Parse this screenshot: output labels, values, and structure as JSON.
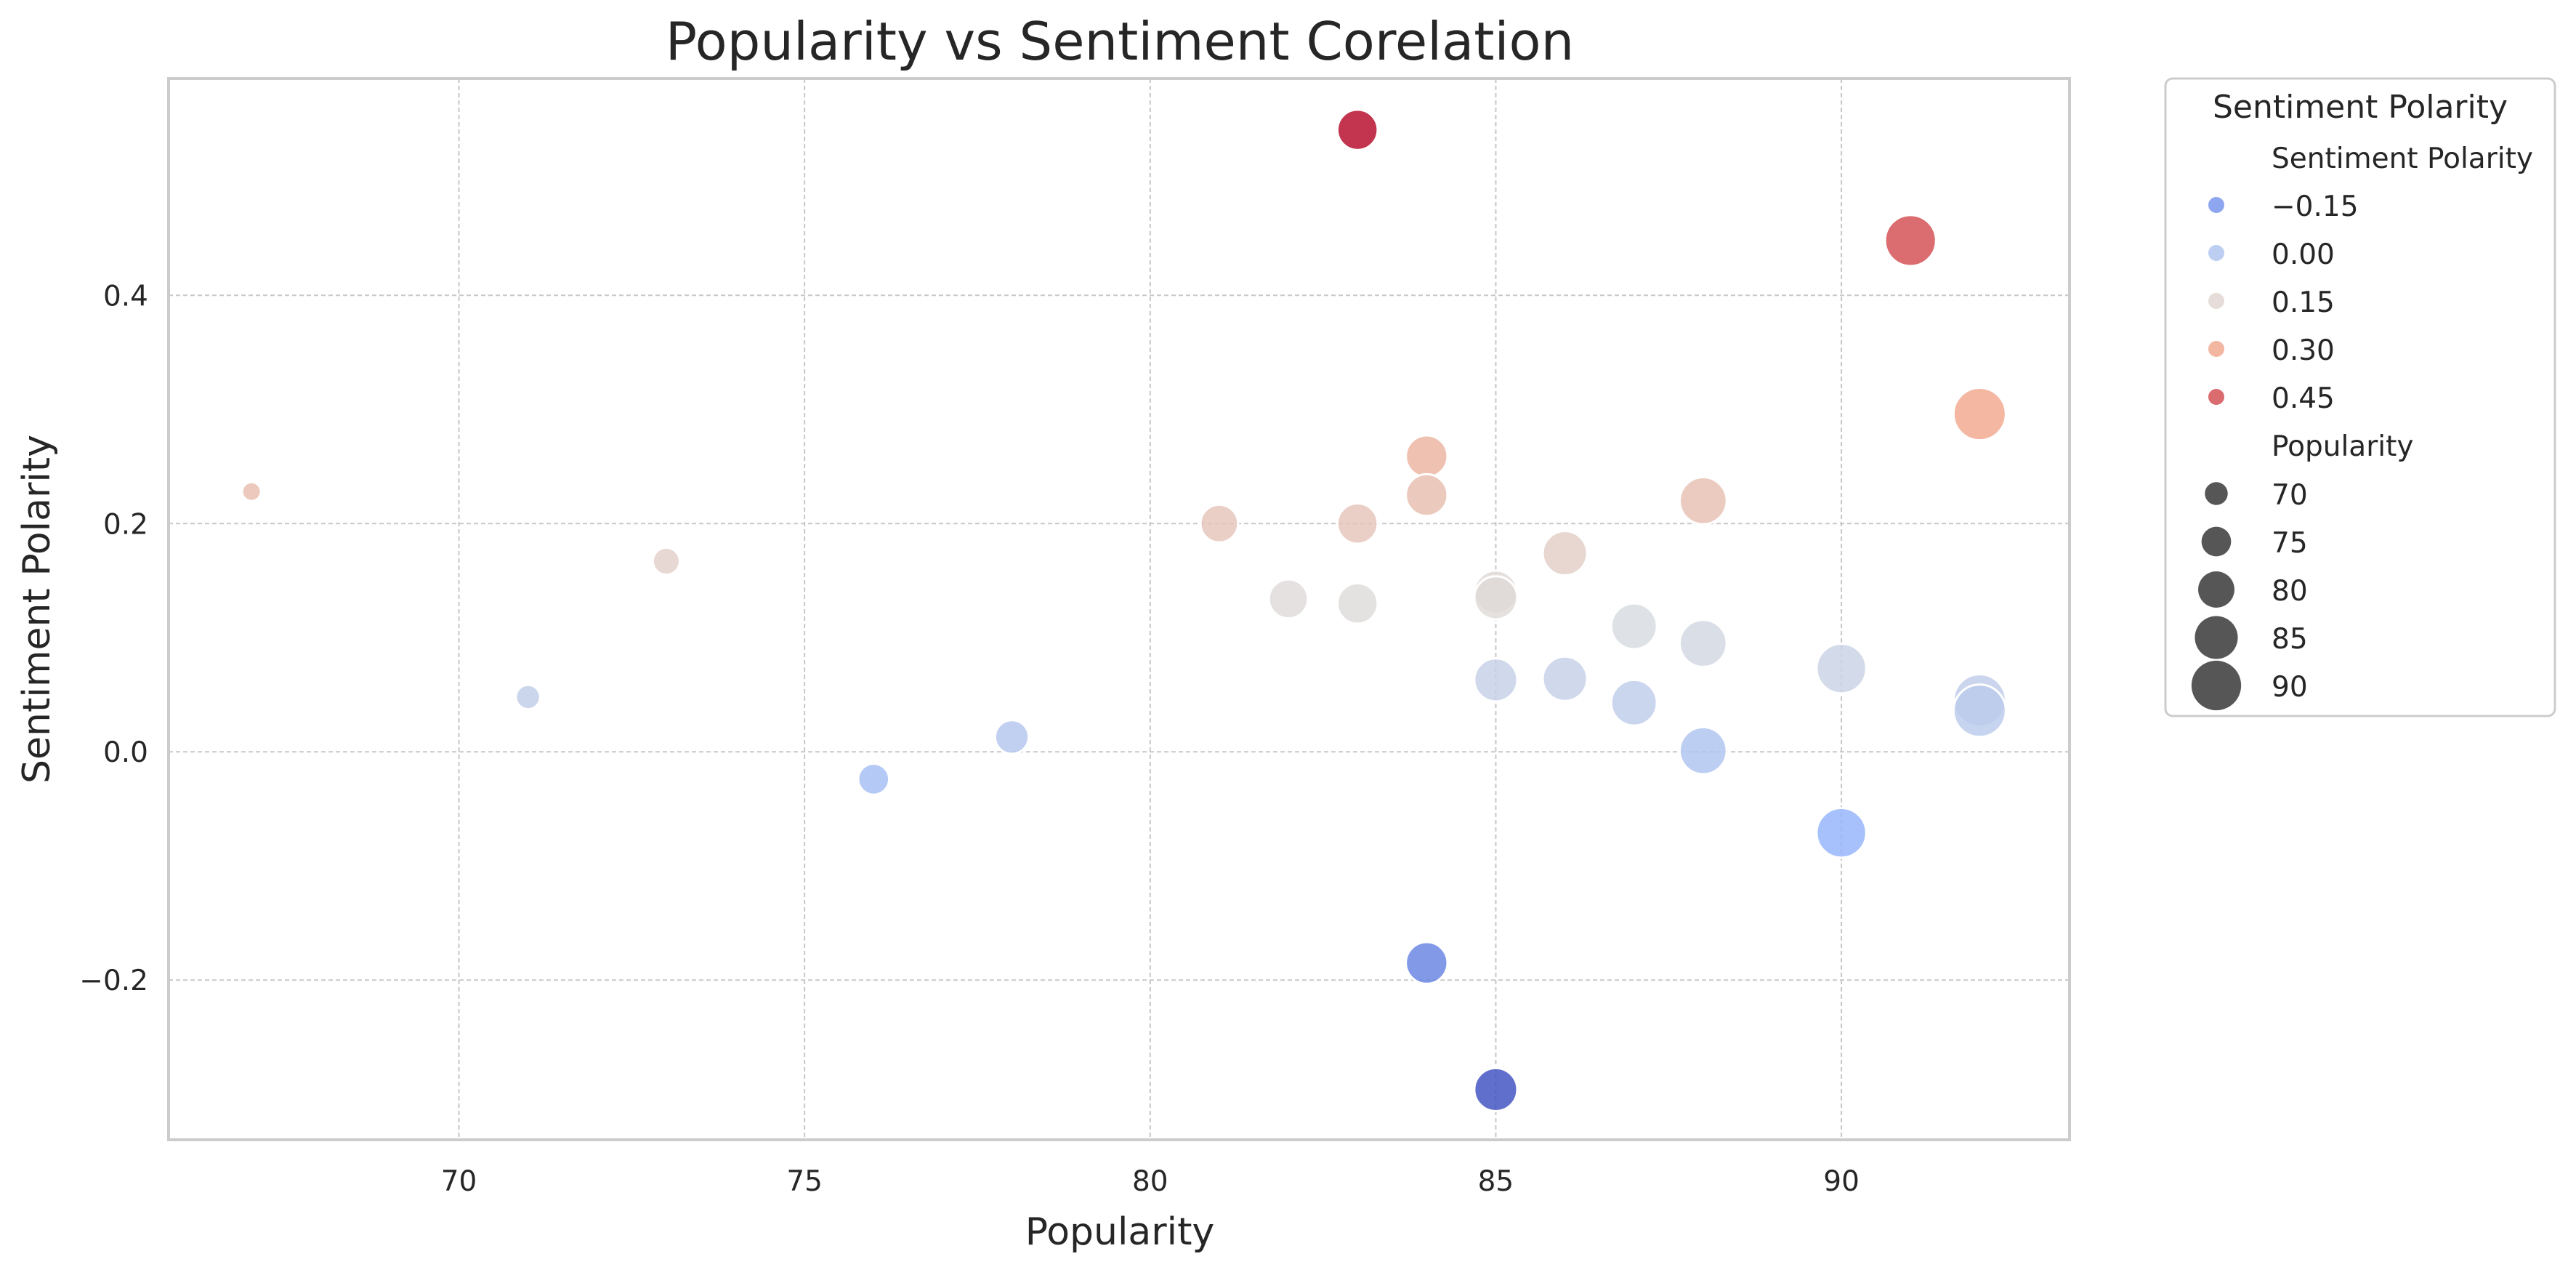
{
  "chart_data": {
    "type": "scatter",
    "title": "Popularity vs Sentiment Corelation",
    "xlabel": "Popularity",
    "ylabel": "Sentiment Polarity",
    "xlim": [
      65.8,
      93.3
    ],
    "ylim": [
      -0.34,
      0.59
    ],
    "xticks": [
      70,
      75,
      80,
      85,
      90
    ],
    "xtick_labels": [
      "70",
      "75",
      "80",
      "85",
      "90"
    ],
    "yticks": [
      -0.2,
      0.0,
      0.2,
      0.4
    ],
    "ytick_labels": [
      "−0.2",
      "0.0",
      "0.2",
      "0.4"
    ],
    "grid": true,
    "hue_variable": "Sentiment Polarity",
    "size_variable": "Popularity",
    "colormap": "coolwarm",
    "points": [
      {
        "x": 67,
        "y": 0.228
      },
      {
        "x": 71,
        "y": 0.048
      },
      {
        "x": 73,
        "y": 0.167
      },
      {
        "x": 76,
        "y": -0.024
      },
      {
        "x": 78,
        "y": 0.013
      },
      {
        "x": 81,
        "y": 0.2
      },
      {
        "x": 82,
        "y": 0.134
      },
      {
        "x": 83,
        "y": 0.545
      },
      {
        "x": 83,
        "y": 0.2
      },
      {
        "x": 83,
        "y": 0.13
      },
      {
        "x": 84,
        "y": 0.259
      },
      {
        "x": 84,
        "y": 0.225
      },
      {
        "x": 84,
        "y": -0.185
      },
      {
        "x": 85,
        "y": 0.14
      },
      {
        "x": 85,
        "y": 0.135
      },
      {
        "x": 85,
        "y": 0.063
      },
      {
        "x": 85,
        "y": -0.296
      },
      {
        "x": 86,
        "y": 0.174
      },
      {
        "x": 86,
        "y": 0.064
      },
      {
        "x": 87,
        "y": 0.11
      },
      {
        "x": 87,
        "y": 0.043
      },
      {
        "x": 88,
        "y": 0.22
      },
      {
        "x": 88,
        "y": 0.095
      },
      {
        "x": 88,
        "y": 0.001
      },
      {
        "x": 90,
        "y": 0.073
      },
      {
        "x": 90,
        "y": -0.071
      },
      {
        "x": 91,
        "y": 0.448
      },
      {
        "x": 92,
        "y": 0.296
      },
      {
        "x": 92,
        "y": 0.045
      },
      {
        "x": 92,
        "y": 0.036
      }
    ],
    "legend": {
      "position": "outside upper right",
      "title": "Sentiment Polarity",
      "hue_title": "Sentiment Polarity",
      "hue_entries": [
        {
          "label": "−0.15",
          "value": -0.15
        },
        {
          "label": "0.00",
          "value": 0.0
        },
        {
          "label": "0.15",
          "value": 0.15
        },
        {
          "label": "0.30",
          "value": 0.3
        },
        {
          "label": "0.45",
          "value": 0.45
        }
      ],
      "size_title": "Popularity",
      "size_entries": [
        {
          "label": "70",
          "value": 70
        },
        {
          "label": "75",
          "value": 75
        },
        {
          "label": "80",
          "value": 80
        },
        {
          "label": "85",
          "value": 85
        },
        {
          "label": "90",
          "value": 90
        }
      ]
    }
  }
}
